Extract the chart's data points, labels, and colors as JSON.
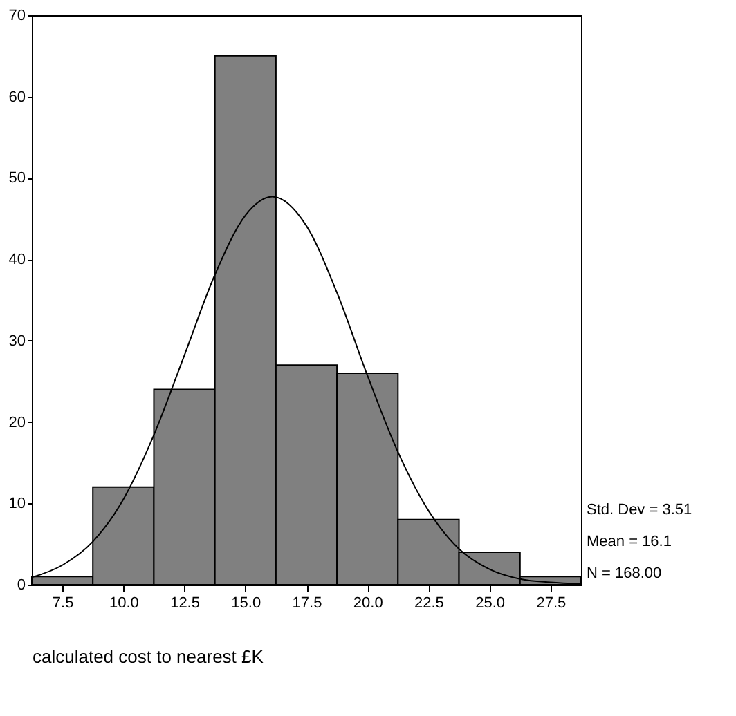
{
  "chart_data": {
    "type": "histogram",
    "xlabel": "calculated cost to nearest £K",
    "bins": [
      6.25,
      8.75,
      11.25,
      13.75,
      16.25,
      18.75,
      21.25,
      23.75,
      26.25,
      28.75
    ],
    "values": [
      1,
      12,
      24,
      65,
      27,
      26,
      8,
      4,
      1
    ],
    "color": "#808080",
    "series": [
      {
        "type": "line",
        "color": "#000000",
        "x": [
          6.25,
          7.5,
          8.75,
          10,
          11.25,
          12.5,
          13.75,
          15,
          16.1,
          17.5,
          18.75,
          20,
          21.25,
          22.5,
          23.75,
          25,
          26.25,
          27.5,
          28.75
        ],
        "values": [
          0.9,
          2.4,
          5.3,
          10.5,
          18.4,
          28.2,
          38.1,
          45.4,
          47.7,
          44.1,
          35.9,
          25.7,
          16.3,
          9.1,
          4.4,
          1.9,
          0.7,
          0.3,
          0.1
        ]
      }
    ],
    "xlim": [
      6.25,
      28.75
    ],
    "xticks": [
      7.5,
      {
        "value": 10,
        "label": "10.0"
      },
      12.5,
      {
        "value": 15,
        "label": "15.0"
      },
      17.5,
      {
        "value": 20,
        "label": "20.0"
      },
      22.5,
      {
        "value": 25,
        "label": "25.0"
      },
      27.5
    ],
    "ylim": [
      0,
      70
    ],
    "yticks": [
      0,
      10,
      20,
      30,
      40,
      50,
      60,
      70
    ],
    "grid": false,
    "annotations": [
      "Std. Dev = 3.51",
      "Mean = 16.1",
      "N = 168.00"
    ]
  }
}
